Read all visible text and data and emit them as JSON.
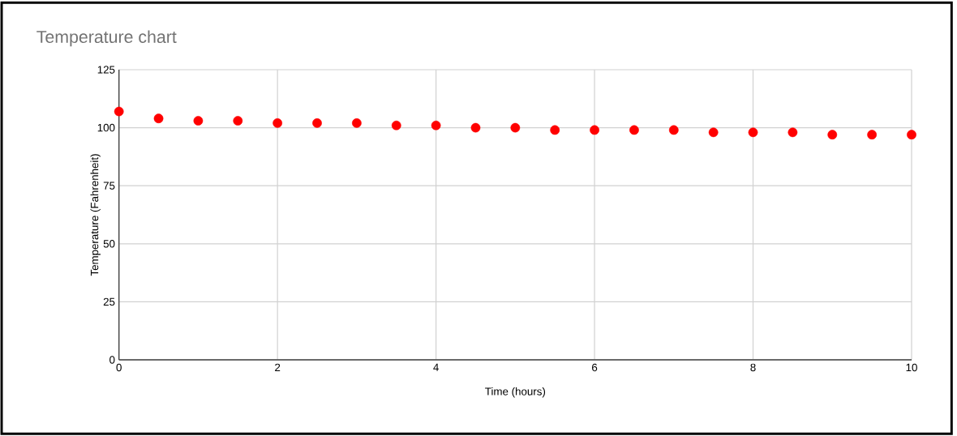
{
  "chart_data": {
    "type": "scatter",
    "title": "Temperature chart",
    "xlabel": "Time (hours)",
    "ylabel": "Temperature (Fahrenheit)",
    "x": [
      0,
      0.5,
      1,
      1.5,
      2,
      2.5,
      3,
      3.5,
      4,
      4.5,
      5,
      5.5,
      6,
      6.5,
      7,
      7.5,
      8,
      8.5,
      9,
      9.5,
      10
    ],
    "series": [
      {
        "color": "#ff0000",
        "values": [
          107,
          104,
          103,
          103,
          102,
          102,
          102,
          101,
          101,
          100,
          100,
          99,
          99,
          99,
          99,
          98,
          98,
          98,
          97,
          97,
          97
        ]
      }
    ],
    "xlim": [
      0,
      10
    ],
    "xticks": [
      0,
      2,
      4,
      6,
      8,
      10
    ],
    "ylim": [
      0,
      125
    ],
    "yticks": [
      0,
      25,
      50,
      75,
      100,
      125
    ],
    "grid": true,
    "marker": "circle"
  }
}
